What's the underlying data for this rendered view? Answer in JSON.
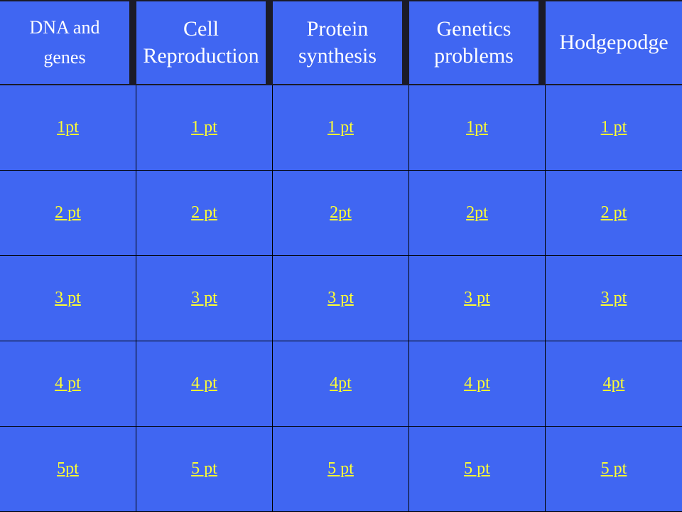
{
  "board": {
    "categories": [
      {
        "label": "DNA and\ngenes"
      },
      {
        "label": "Cell\nReproduction"
      },
      {
        "label": "Protein\nsynthesis"
      },
      {
        "label": "Genetics\nproblems"
      },
      {
        "label": "Hodgepodge"
      }
    ],
    "rows": [
      [
        "1pt",
        "1 pt",
        "1 pt",
        "1pt",
        "1 pt"
      ],
      [
        "2 pt",
        "2 pt",
        "2pt",
        "2pt",
        "2 pt"
      ],
      [
        "3 pt",
        "3 pt",
        "3 pt",
        "3 pt",
        "3 pt"
      ],
      [
        "4 pt",
        "4 pt",
        "4pt",
        "4 pt",
        "4pt"
      ],
      [
        "5pt",
        "5 pt",
        "5 pt",
        "5 pt",
        "5 pt"
      ]
    ]
  },
  "colors": {
    "tile_blue": "#4066f2",
    "link_yellow": "#ffff33",
    "grid_line": "#000000",
    "header_text": "#ffffff"
  }
}
